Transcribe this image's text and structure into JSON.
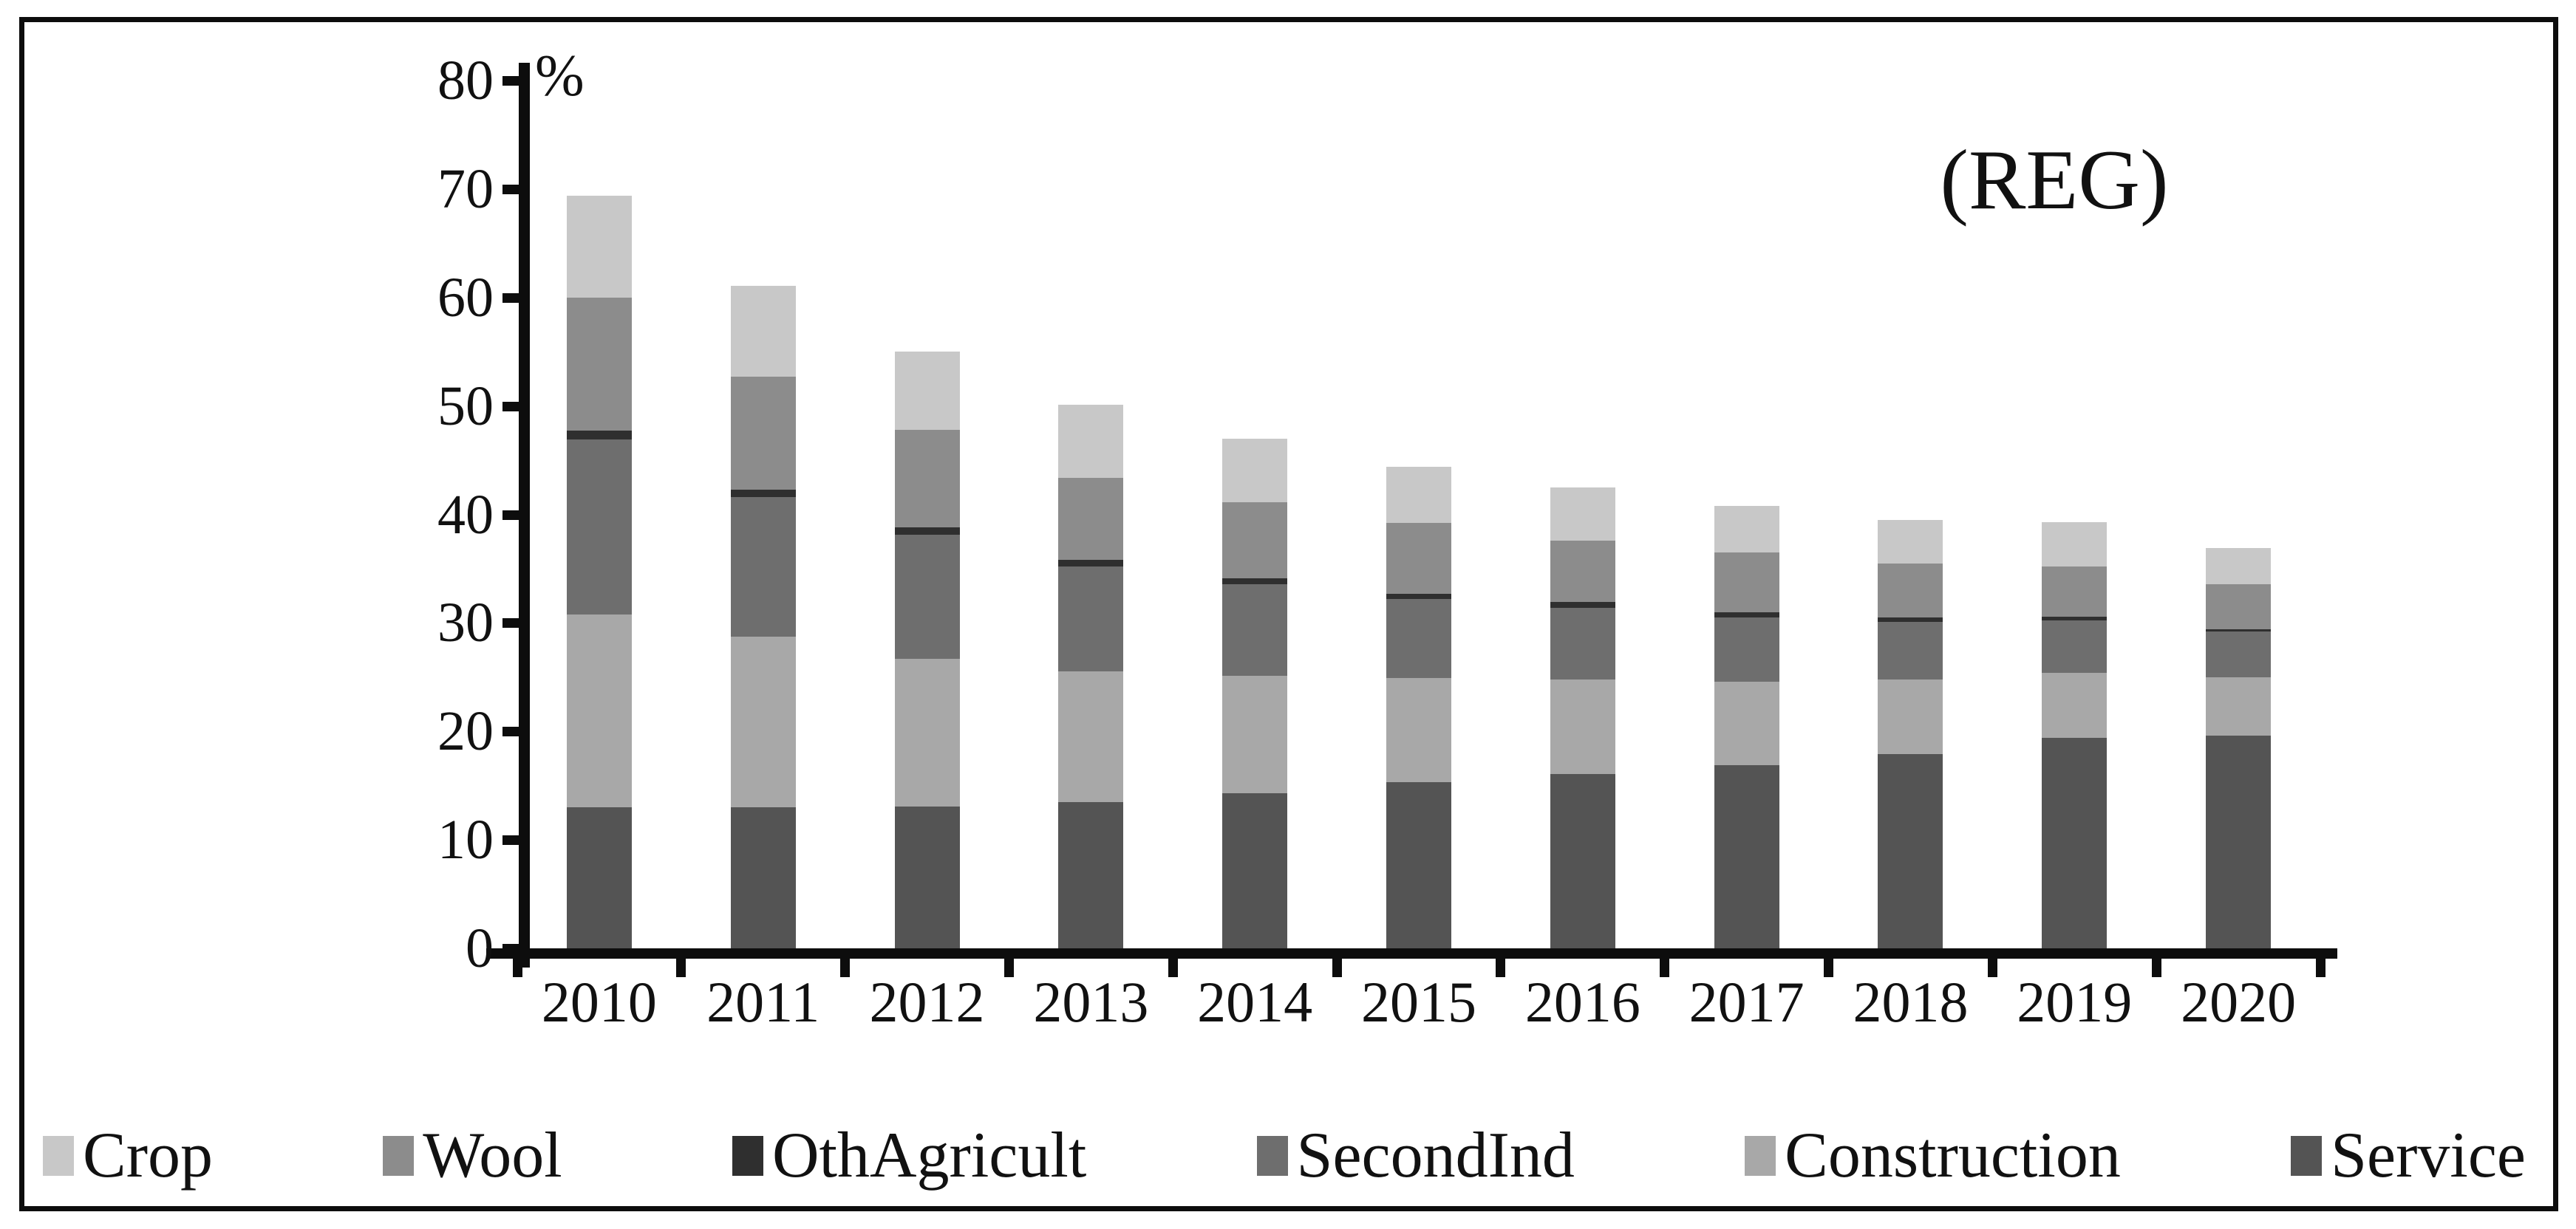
{
  "figure": {
    "annotation": "(REG)",
    "unit_label": "%"
  },
  "chart_data": {
    "type": "bar",
    "stacked": true,
    "title": "",
    "annotation": "(REG)",
    "xlabel": "",
    "ylabel": "%",
    "ylim": [
      0,
      80
    ],
    "ytick_step": 10,
    "grid": false,
    "legend_position": "bottom",
    "y_ticks": [
      "80",
      "70",
      "60",
      "50",
      "40",
      "30",
      "20",
      "10",
      "0"
    ],
    "categories": [
      "2010",
      "2011",
      "2012",
      "2013",
      "2014",
      "2015",
      "2016",
      "2017",
      "2018",
      "2019",
      "2020"
    ],
    "stack_order_bottom_to_top": [
      "Service",
      "Construction",
      "SecondInd",
      "OthAgricult",
      "Wool",
      "Crop"
    ],
    "legend_items": [
      "Crop",
      "Wool",
      "OthAgricult",
      "SecondInd",
      "Construction",
      "Service"
    ],
    "series": [
      {
        "name": "Crop",
        "color": "#c8c8c8",
        "values": [
          9.4,
          8.4,
          7.2,
          6.7,
          5.9,
          5.2,
          4.9,
          4.3,
          4.0,
          4.1,
          3.3
        ]
      },
      {
        "name": "Wool",
        "color": "#8c8c8c",
        "values": [
          12.3,
          10.4,
          9.0,
          7.6,
          7.0,
          6.5,
          5.7,
          5.5,
          5.0,
          4.6,
          4.2
        ]
      },
      {
        "name": "OthAgricult",
        "color": "#2f2f2f",
        "values": [
          0.8,
          0.7,
          0.7,
          0.6,
          0.5,
          0.5,
          0.5,
          0.5,
          0.4,
          0.4,
          0.2
        ]
      },
      {
        "name": "SecondInd",
        "color": "#6e6e6e",
        "values": [
          16.1,
          12.9,
          11.4,
          9.7,
          8.5,
          7.3,
          6.6,
          5.9,
          5.3,
          4.8,
          4.2
        ]
      },
      {
        "name": "Construction",
        "color": "#a8a8a8",
        "values": [
          17.8,
          15.7,
          13.6,
          12.0,
          10.8,
          9.6,
          8.7,
          7.7,
          6.9,
          6.0,
          5.4
        ]
      },
      {
        "name": "Service",
        "color": "#545454",
        "values": [
          13.0,
          13.0,
          13.1,
          13.5,
          14.3,
          15.3,
          16.1,
          16.9,
          17.9,
          19.4,
          19.6
        ]
      }
    ],
    "totals": [
      69.4,
      61.1,
      55.0,
      50.1,
      47.0,
      44.4,
      42.5,
      40.8,
      39.5,
      39.3,
      36.9
    ]
  }
}
